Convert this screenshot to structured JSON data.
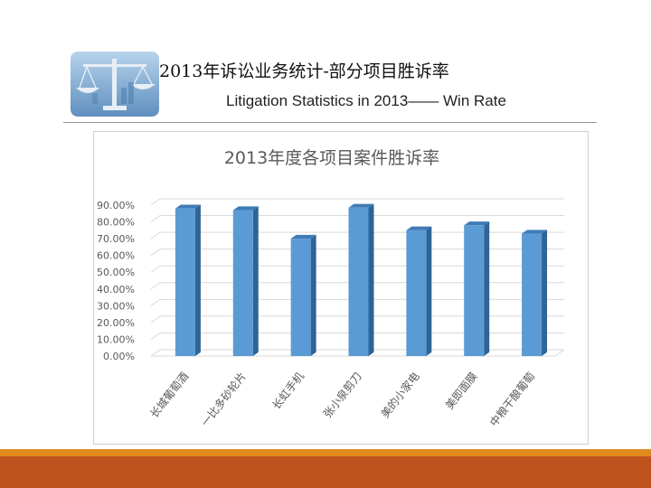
{
  "header": {
    "title_cn": "2013年诉讼业务统计-部分项目胜诉率",
    "title_en": "Litigation Statistics in 2013—— Win Rate"
  },
  "colors": {
    "bar_front": "#5b9bd5",
    "bar_side": "#2e6496",
    "bar_top": "#3f7bb5",
    "accent_orange": "#e08a1e",
    "accent_red": "#c0521e"
  },
  "chart_data": {
    "type": "bar",
    "title": "2013年度各项目案件胜诉率",
    "categories": [
      "长城葡萄酒",
      "一比多砂轮片",
      "长虹手机",
      "张小泉剪刀",
      "美的小家电",
      "美即面膜",
      "中粮干酿葡萄"
    ],
    "values": [
      88.0,
      87.0,
      70.0,
      88.5,
      75.0,
      78.0,
      73.0
    ],
    "ylim": [
      0,
      90
    ],
    "yticks": [
      "0.00%",
      "10.00%",
      "20.00%",
      "30.00%",
      "40.00%",
      "50.00%",
      "60.00%",
      "70.00%",
      "80.00%",
      "90.00%"
    ],
    "grid": true,
    "legend": "none",
    "xlabel": "",
    "ylabel": ""
  }
}
